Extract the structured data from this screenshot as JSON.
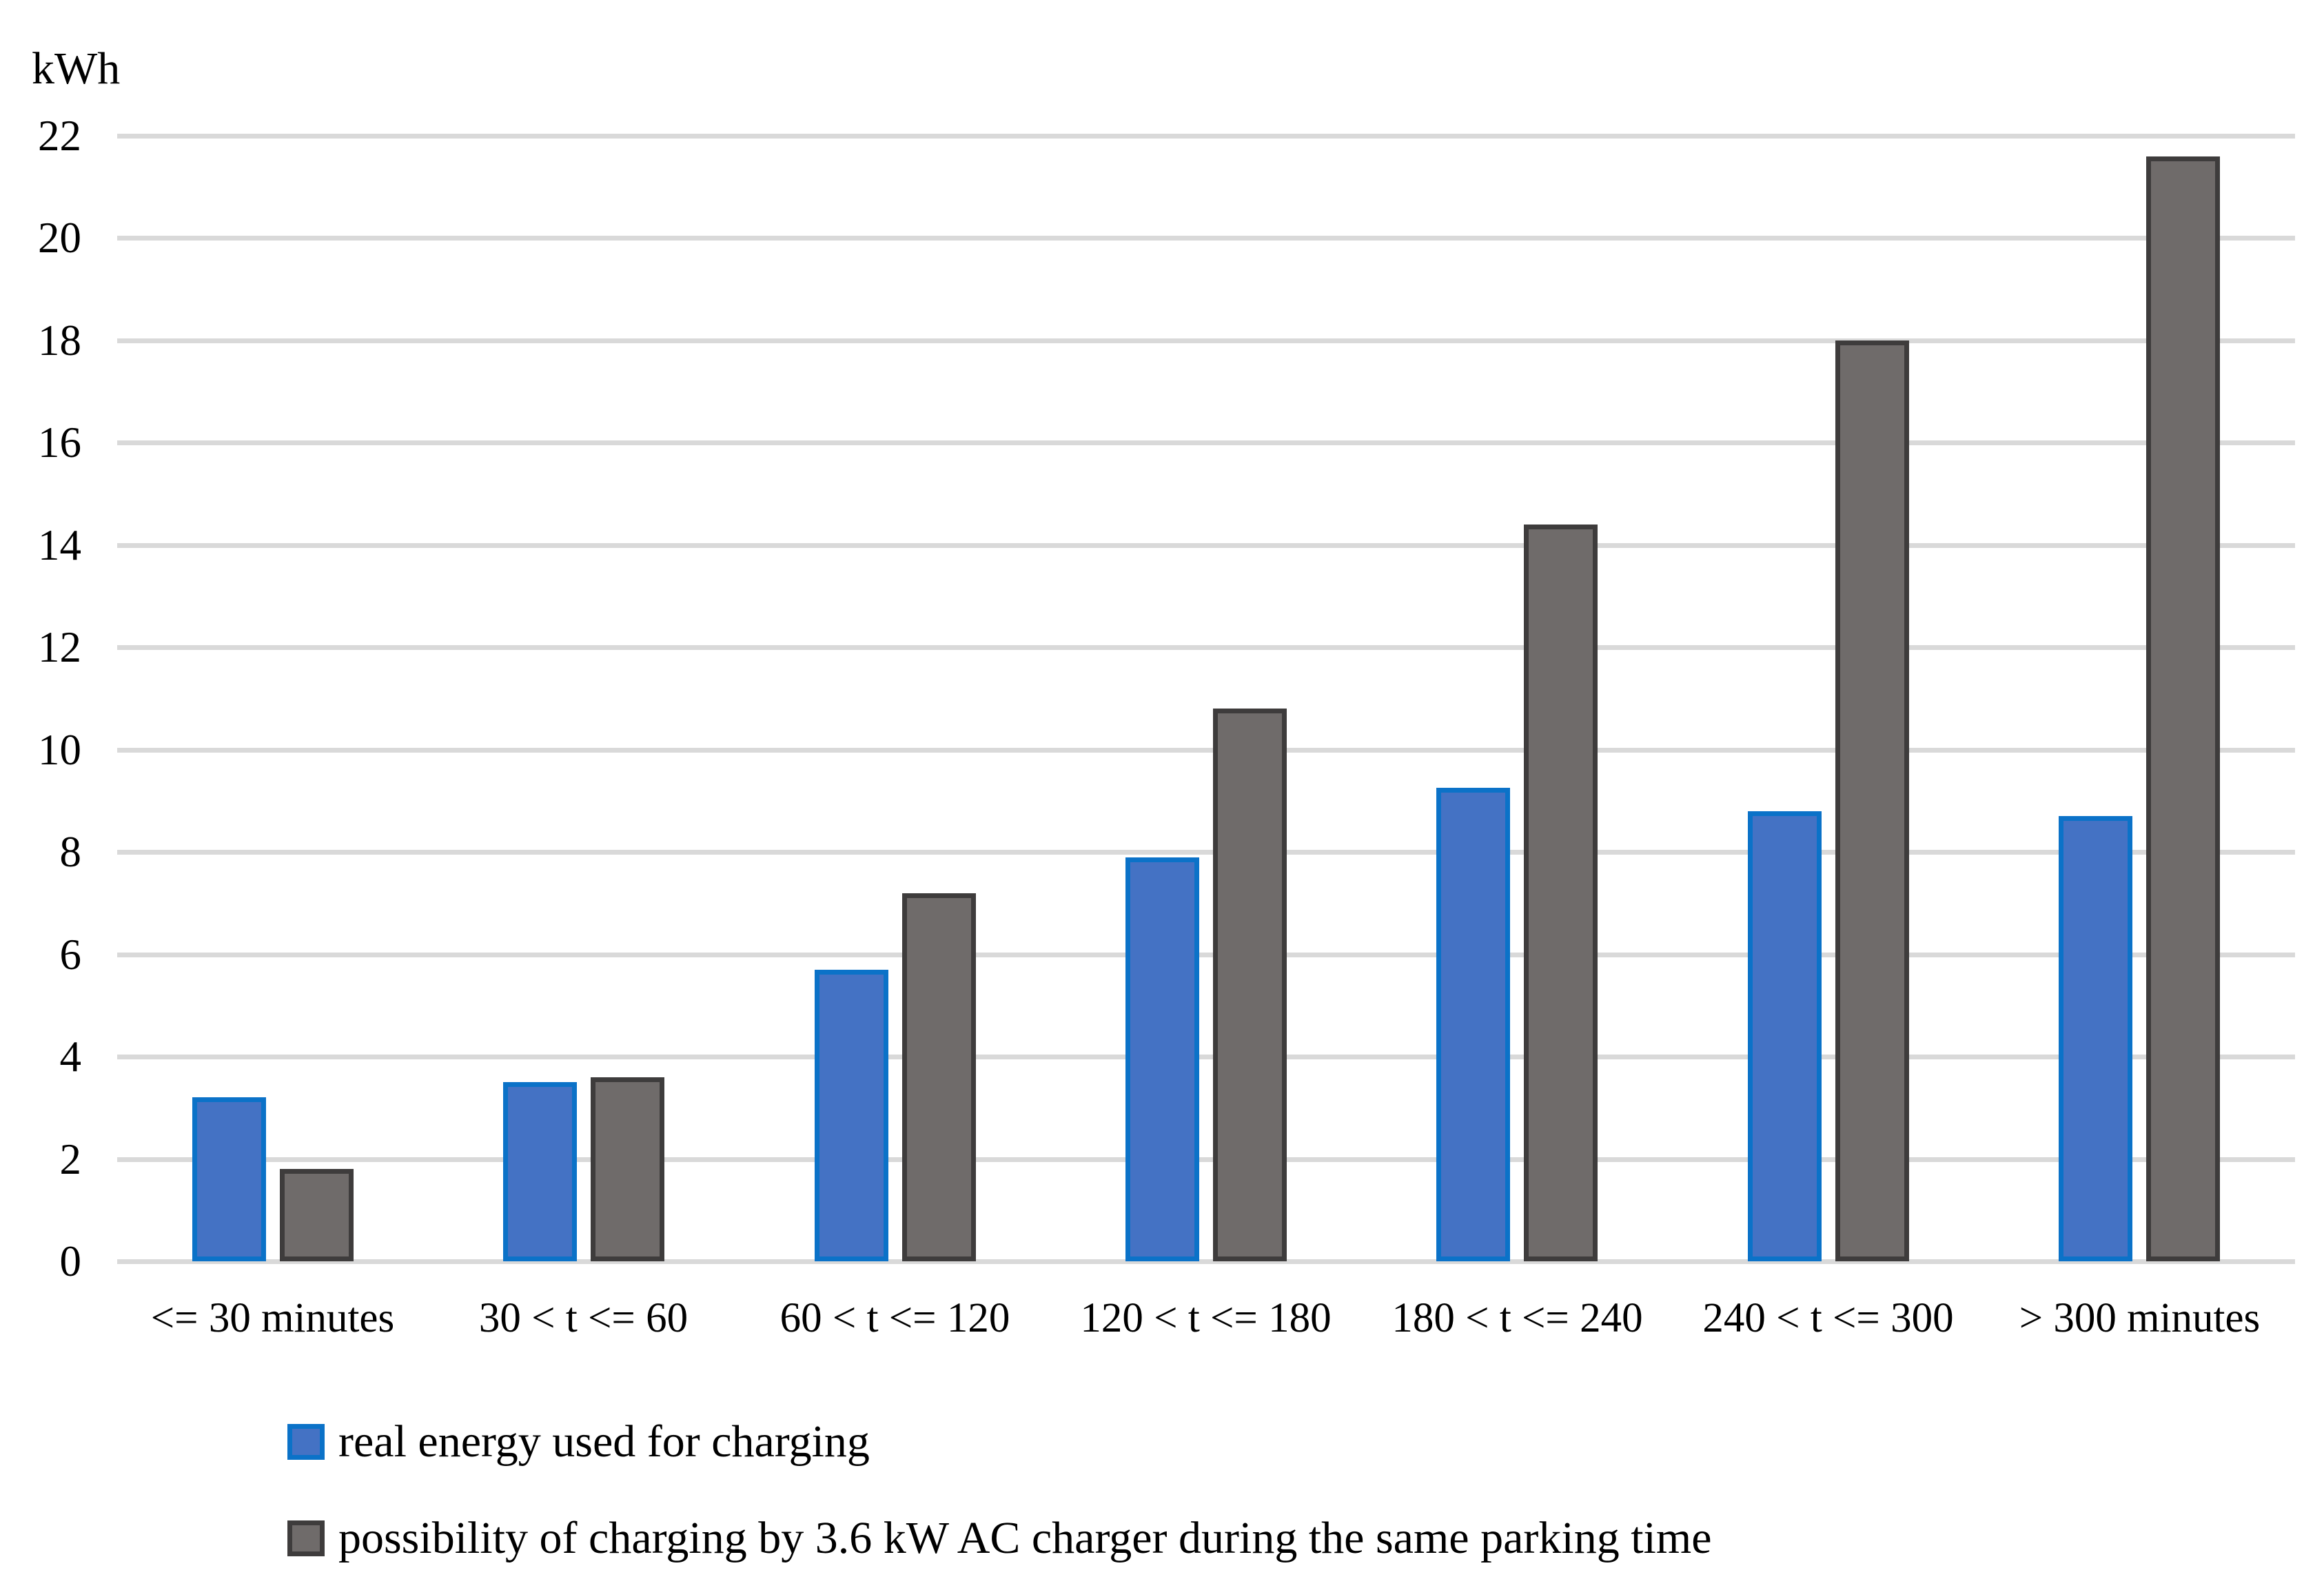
{
  "chart_data": {
    "type": "bar",
    "title": "",
    "ylabel": "kWh",
    "xlabel": "",
    "ylim": [
      0,
      22
    ],
    "yticks": [
      0,
      2,
      4,
      6,
      8,
      10,
      12,
      14,
      16,
      18,
      20,
      22
    ],
    "grid": true,
    "gridline_color": "#d9d9d9",
    "axis_color": "#d9d9d9",
    "legend_position": "bottom-left",
    "categories": [
      "<= 30 minutes",
      "30 < t <= 60",
      "60 < t <= 120",
      "120 < t <= 180",
      "180 < t <= 240",
      "240 < t <= 300",
      "> 300 minutes"
    ],
    "series": [
      {
        "name": "real energy used for charging",
        "color": "#4472c4",
        "border_color": "#0b72c8",
        "values": [
          3.2,
          3.5,
          5.7,
          7.9,
          9.25,
          8.8,
          8.7
        ]
      },
      {
        "name": "possibility of charging by 3.6 kW AC charger during the same parking time",
        "color": "#6f6b6a",
        "border_color": "#3e3c3c",
        "values": [
          1.8,
          3.6,
          7.2,
          10.8,
          14.4,
          18,
          21.6
        ]
      }
    ]
  }
}
